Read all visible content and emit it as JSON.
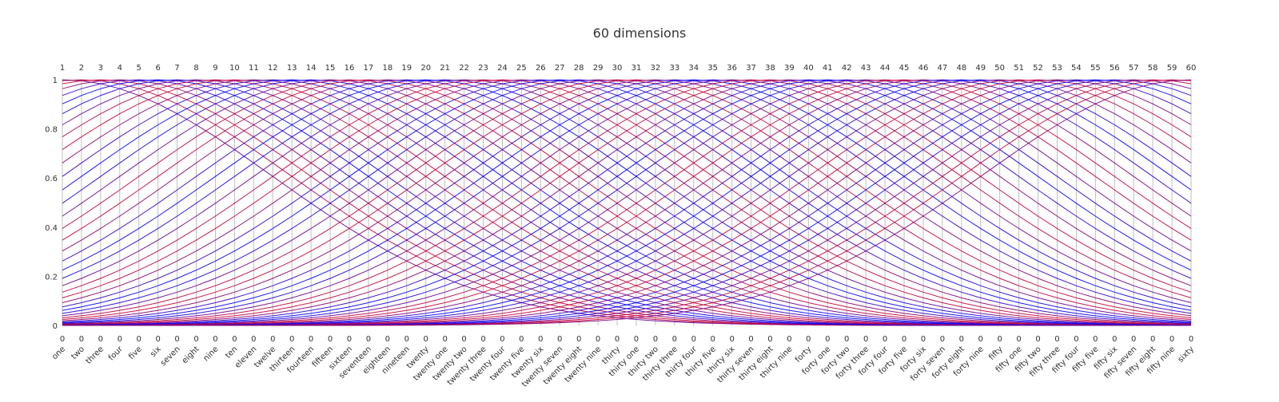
{
  "chart_data": {
    "type": "line",
    "subtype": "parallel-coordinates",
    "title": "60 dimensions",
    "dimensions": [
      "one",
      "two",
      "three",
      "four",
      "five",
      "six",
      "seven",
      "eight",
      "nine",
      "ten",
      "eleven",
      "twelve",
      "thirteen",
      "fourteen",
      "fifteen",
      "sixteen",
      "seventeen",
      "eighteen",
      "nineteen",
      "twenty",
      "twenty one",
      "twenty two",
      "twenty three",
      "twenty four",
      "twenty five",
      "twenty six",
      "twenty seven",
      "twenty eight",
      "twenty nine",
      "thirty",
      "thirty one",
      "thirty two",
      "thirty three",
      "thirty four",
      "thirty five",
      "thirty six",
      "thirty seven",
      "thirty eight",
      "thirty nine",
      "forty",
      "forty one",
      "forty two",
      "forty three",
      "forty four",
      "forty five",
      "forty six",
      "forty seven",
      "forty eight",
      "forty nine",
      "fifty",
      "fifty one",
      "fifty two",
      "fifty three",
      "fifty four",
      "fifty five",
      "fifty six",
      "fifty seven",
      "fifty eight",
      "fifty nine",
      "sixty"
    ],
    "axis_max_labels": [
      "1",
      "2",
      "3",
      "4",
      "5",
      "6",
      "7",
      "8",
      "9",
      "10",
      "11",
      "12",
      "13",
      "14",
      "15",
      "16",
      "17",
      "18",
      "19",
      "20",
      "21",
      "22",
      "23",
      "24",
      "25",
      "26",
      "27",
      "28",
      "29",
      "30",
      "31",
      "32",
      "33",
      "34",
      "35",
      "36",
      "37",
      "38",
      "39",
      "40",
      "41",
      "42",
      "43",
      "44",
      "45",
      "46",
      "47",
      "48",
      "49",
      "50",
      "51",
      "52",
      "53",
      "54",
      "55",
      "56",
      "57",
      "58",
      "59",
      "60"
    ],
    "ylim": [
      0,
      1
    ],
    "y_ticks": [
      "0",
      "0.2",
      "0.4",
      "0.6",
      "0.8",
      "1"
    ],
    "series_count": 60,
    "series_description": "Series k (k = 1..60) passes through a Gaussian-shaped profile over the 60 axes, peaking at axis k with each axis j scaled to [0, j].",
    "color_scale": [
      "#0000ff",
      "#cc0033"
    ],
    "grid": false,
    "legend": "none"
  }
}
